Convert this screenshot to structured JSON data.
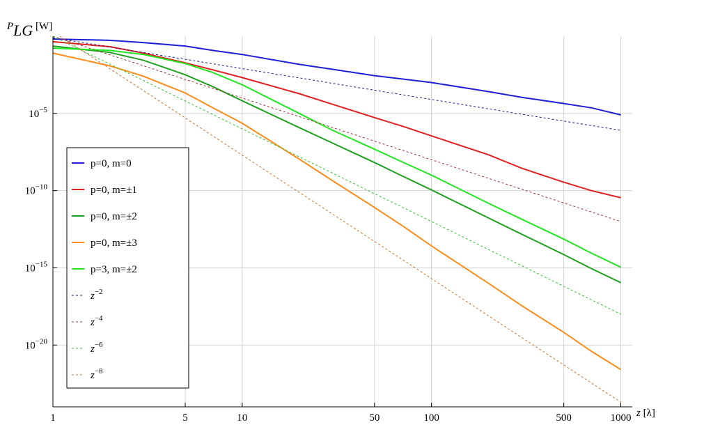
{
  "chart_data": {
    "type": "line",
    "y_label": "PLG [W]",
    "x_label": "z [λ]",
    "log_x": true,
    "log_y": true,
    "grid": true,
    "legend": "left",
    "x": [
      1,
      2,
      3,
      5,
      7,
      10,
      20,
      30,
      50,
      70,
      100,
      200,
      300,
      500,
      700,
      1000
    ],
    "xlim": [
      1,
      1150
    ],
    "xticks": [
      1,
      5,
      10,
      50,
      100,
      500,
      1000
    ],
    "ylim": [
      1e-24,
      1
    ],
    "yticks": [
      {
        "value": 1e-05,
        "label": "10−5"
      },
      {
        "value": 1e-10,
        "label": "10−10"
      },
      {
        "value": 1e-15,
        "label": "10−15"
      },
      {
        "value": 1e-20,
        "label": "10−20"
      }
    ],
    "series": [
      {
        "name": "p=0, m=0",
        "color": "#1f1fd6",
        "dashed": false,
        "values": [
          0.66,
          0.54,
          0.39,
          0.23,
          0.12,
          0.066,
          0.015,
          0.0072,
          0.0028,
          0.0017,
          0.001,
          0.00026,
          0.00011,
          4.4e-05,
          2.3e-05,
          8.1e-06
        ]
      },
      {
        "name": "p=0, m=±1",
        "color": "#e32020",
        "dashed": false,
        "values": [
          0.44,
          0.21,
          0.081,
          0.019,
          0.0066,
          0.0021,
          0.00019,
          3.9e-05,
          5.4e-06,
          1.5e-06,
          3.5e-07,
          2.1e-08,
          2.8e-09,
          3.5e-10,
          1e-10,
          3.5e-11
        ]
      },
      {
        "name": "p=0, m=±2",
        "color": "#1fa01f",
        "dashed": false,
        "values": [
          0.23,
          0.089,
          0.028,
          0.0032,
          0.00054,
          6.6e-05,
          1.2e-06,
          1.2e-07,
          6.6e-09,
          8.9e-10,
          1.1e-10,
          1.7e-12,
          1.5e-13,
          7.2e-15,
          8.9e-16,
          1.1e-16
        ]
      },
      {
        "name": "p=0, m=±3",
        "color": "#ff8c1a",
        "dashed": false,
        "values": [
          0.081,
          0.012,
          0.0026,
          0.00021,
          2.3e-05,
          2.3e-06,
          1.1e-08,
          4.4e-10,
          8.1e-12,
          5.4e-13,
          2.6e-14,
          1e-16,
          3.5e-18,
          6.6e-20,
          3.9e-21,
          2.6e-22
        ]
      },
      {
        "name": "p=3, m=±2",
        "color": "#22e622",
        "dashed": false,
        "values": [
          0.17,
          0.12,
          0.066,
          0.017,
          0.0044,
          0.00072,
          1e-05,
          8.1e-07,
          4.8e-08,
          7.2e-09,
          1e-09,
          1.5e-11,
          1.4e-12,
          7.2e-14,
          8.9e-15,
          1.1e-15
        ]
      },
      {
        "name": "z−2",
        "color": "#1a1a8c",
        "dashed": true,
        "values": [
          0.8,
          0.2,
          0.0889,
          0.032,
          0.0163,
          0.008,
          0.002,
          0.000889,
          0.00032,
          0.000163,
          8e-05,
          2e-05,
          8.89e-06,
          3.2e-06,
          1.63e-06,
          8e-07
        ]
      },
      {
        "name": "z−4",
        "color": "#a03030",
        "dashed": true,
        "values": [
          1,
          0.0625,
          0.0123,
          0.0016,
          0.000416,
          0.0001,
          6.25e-06,
          1.23e-06,
          1.6e-07,
          4.16e-08,
          1e-08,
          6.25e-10,
          1.23e-10,
          1.6e-11,
          4.16e-12,
          1e-12
        ]
      },
      {
        "name": "z−6",
        "color": "#30c030",
        "dashed": true,
        "values": [
          1,
          0.0156,
          0.00137,
          6.4e-05,
          8.5e-06,
          1e-06,
          1.56e-08,
          1.37e-09,
          6.4e-11,
          8.5e-12,
          1e-12,
          1.56e-14,
          1.37e-15,
          6.4e-17,
          8.5e-18,
          1e-18
        ]
      },
      {
        "name": "z−8",
        "color": "#c8702a",
        "dashed": true,
        "values": [
          2,
          0.0078,
          0.000305,
          5.12e-06,
          3.47e-07,
          2e-08,
          7.8e-11,
          3.05e-12,
          5.12e-14,
          3.47e-15,
          2e-16,
          7.8e-19,
          3.05e-20,
          5.12e-22,
          3.47e-23,
          2e-24
        ]
      }
    ]
  }
}
